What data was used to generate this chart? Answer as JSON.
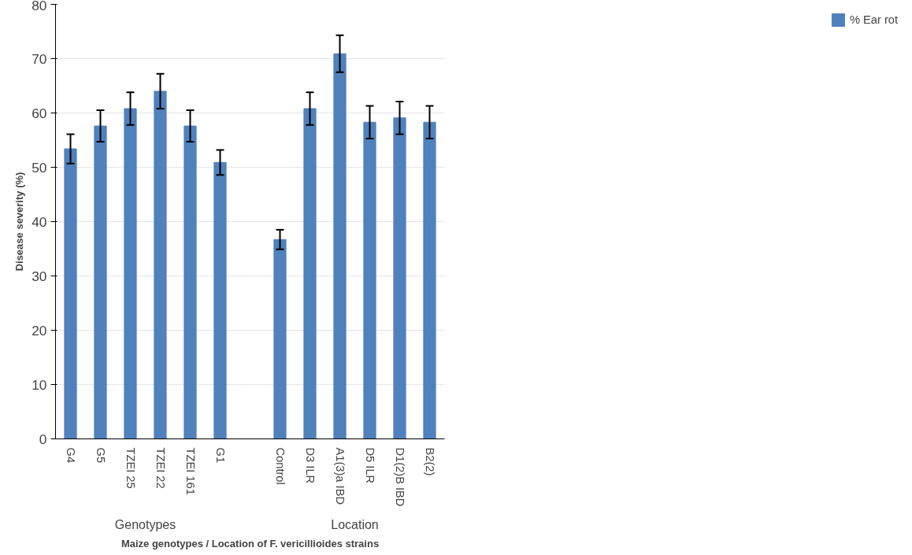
{
  "chart_data": {
    "type": "bar",
    "xlabel": "Maize genotypes / Location of F. vericillioides strains",
    "ylabel": "Disease severity (%)",
    "categories": [
      "G4",
      "G5",
      "TZEI 25",
      "TZEI 22",
      "TZEI 161",
      "G1",
      null,
      "Control",
      "D3 ILR",
      "A1(3)a IBD",
      "D5 ILR",
      "D1(2)B IBD",
      "B2(2)"
    ],
    "series": [
      {
        "name": "% Ear rot",
        "color": "#4f81bd",
        "values": [
          53.4,
          57.6,
          60.8,
          64.0,
          57.6,
          50.9,
          null,
          36.7,
          60.8,
          70.9,
          58.3,
          59.1,
          58.3
        ],
        "errors": [
          2.7,
          2.9,
          3.0,
          3.2,
          2.9,
          2.3,
          null,
          1.8,
          3.0,
          3.4,
          3.0,
          3.0,
          3.0
        ]
      }
    ],
    "annotations": [
      "Genotypes",
      "Location"
    ],
    "ylim": [
      0,
      80
    ],
    "yticks": [
      0,
      10,
      20,
      30,
      40,
      50,
      60,
      70,
      80
    ],
    "grid": "y",
    "legend": "right"
  }
}
